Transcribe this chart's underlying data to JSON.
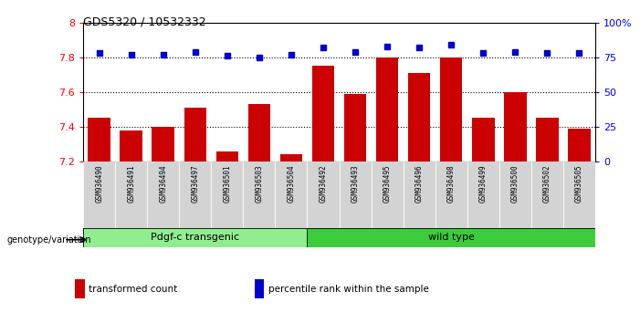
{
  "title": "GDS5320 / 10532332",
  "samples": [
    "GSM936490",
    "GSM936491",
    "GSM936494",
    "GSM936497",
    "GSM936501",
    "GSM936503",
    "GSM936504",
    "GSM936492",
    "GSM936493",
    "GSM936495",
    "GSM936496",
    "GSM936498",
    "GSM936499",
    "GSM936500",
    "GSM936502",
    "GSM936505"
  ],
  "red_values": [
    7.45,
    7.38,
    7.4,
    7.51,
    7.26,
    7.53,
    7.24,
    7.75,
    7.59,
    7.8,
    7.71,
    7.8,
    7.45,
    7.6,
    7.45,
    7.39
  ],
  "blue_values": [
    78,
    77,
    77,
    79,
    76,
    75,
    77,
    82,
    79,
    83,
    82,
    84,
    78,
    79,
    78,
    78
  ],
  "groups": [
    {
      "label": "Pdgf-c transgenic",
      "start": 0,
      "end": 6,
      "color": "#90EE90"
    },
    {
      "label": "wild type",
      "start": 7,
      "end": 15,
      "color": "#3CCC3C"
    }
  ],
  "ylim_left": [
    7.2,
    8.0
  ],
  "ylim_right": [
    0,
    100
  ],
  "yticks_left": [
    7.2,
    7.4,
    7.6,
    7.8,
    8.0
  ],
  "ytick_labels_left": [
    "7.2",
    "7.4",
    "7.6",
    "7.8",
    "8"
  ],
  "ytick_labels_right": [
    "0",
    "25",
    "50",
    "75",
    "100%"
  ],
  "hlines": [
    7.4,
    7.6,
    7.8
  ],
  "bar_color": "#CC0000",
  "dot_color": "#0000CC",
  "background_color": "#ffffff",
  "tick_label_bg": "#d3d3d3",
  "genotype_label": "genotype/variation",
  "legend_items": [
    {
      "color": "#CC0000",
      "label": "transformed count"
    },
    {
      "color": "#0000CC",
      "label": "percentile rank within the sample"
    }
  ]
}
